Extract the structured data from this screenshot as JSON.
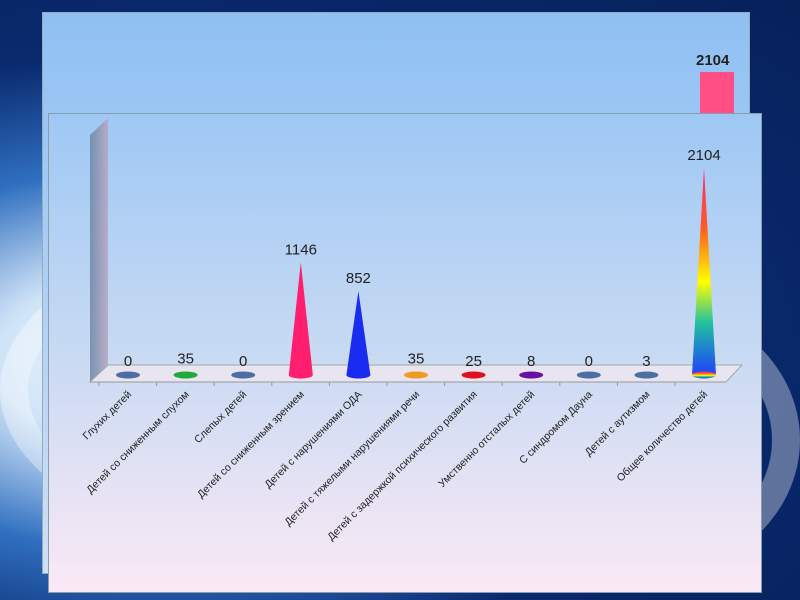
{
  "chart_data": {
    "type": "bar",
    "style": "3d-cone",
    "title": "",
    "xlabel": "",
    "ylabel": "",
    "ylim": [
      0,
      2104
    ],
    "grid": false,
    "legend": "none",
    "categories": [
      "Глухих детей",
      "Детей со сниженным слухом",
      "Слепых детей",
      "Детей со сниженным зрением",
      "Детей с нарушениями ОДА",
      "Детей с тяжелыми нарушениями речи",
      "Детей с задержкой психического развития",
      "Умственно отсталых детей",
      "С синдромом Дауна",
      "Детей с аутизмом",
      "Общее количество детей"
    ],
    "values": [
      0,
      35,
      0,
      1146,
      852,
      35,
      25,
      8,
      0,
      3,
      2104
    ],
    "colors": [
      "#4a6fa0",
      "#1faa3a",
      "#4a6fa0",
      "#ff1f6e",
      "#1a2cf0",
      "#f09a20",
      "#e01020",
      "#6a10a0",
      "#4a6fa0",
      "#4a6fa0",
      "rainbow"
    ]
  },
  "background_chart": {
    "value_label": "2104",
    "bar_color": "#ff4f84"
  }
}
